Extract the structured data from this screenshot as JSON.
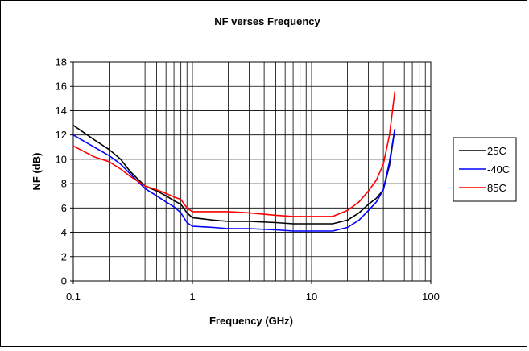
{
  "chart_data": {
    "type": "line",
    "title": "NF verses Frequency",
    "xlabel": "Frequency (GHz)",
    "ylabel": "NF (dB)",
    "xscale": "log",
    "xlim": [
      0.1,
      100
    ],
    "ylim": [
      0,
      18
    ],
    "xticks": [
      "0.1",
      "1",
      "10",
      "100"
    ],
    "yticks": [
      "0",
      "2",
      "4",
      "6",
      "8",
      "10",
      "12",
      "14",
      "16",
      "18"
    ],
    "grid": true,
    "legend_position": "right",
    "series": [
      {
        "name": "25C",
        "color": "#000000",
        "x": [
          0.1,
          0.15,
          0.2,
          0.25,
          0.3,
          0.4,
          0.5,
          0.6,
          0.7,
          0.8,
          0.9,
          1,
          1.5,
          2,
          3,
          5,
          7,
          10,
          15,
          20,
          25,
          30,
          35,
          40,
          45,
          50
        ],
        "y": [
          12.8,
          11.6,
          10.8,
          10.0,
          9.0,
          7.8,
          7.4,
          7.0,
          6.6,
          6.3,
          5.6,
          5.2,
          5.0,
          4.9,
          4.9,
          4.8,
          4.7,
          4.7,
          4.7,
          5.0,
          5.6,
          6.3,
          6.8,
          7.5,
          9.5,
          12.5
        ]
      },
      {
        "name": "-40C",
        "color": "#0000ff",
        "x": [
          0.1,
          0.15,
          0.2,
          0.25,
          0.3,
          0.4,
          0.5,
          0.6,
          0.7,
          0.8,
          0.9,
          1,
          1.5,
          2,
          3,
          5,
          7,
          10,
          15,
          20,
          25,
          30,
          35,
          40,
          45,
          50
        ],
        "y": [
          12.0,
          11.0,
          10.3,
          9.6,
          8.8,
          7.6,
          7.0,
          6.5,
          6.1,
          5.6,
          4.8,
          4.5,
          4.4,
          4.3,
          4.3,
          4.2,
          4.1,
          4.1,
          4.1,
          4.4,
          5.0,
          5.8,
          6.5,
          7.5,
          9.8,
          12.5
        ]
      },
      {
        "name": "85C",
        "color": "#ff0000",
        "x": [
          0.1,
          0.15,
          0.2,
          0.25,
          0.3,
          0.4,
          0.5,
          0.6,
          0.7,
          0.8,
          0.9,
          1,
          1.5,
          2,
          3,
          5,
          7,
          10,
          15,
          20,
          25,
          30,
          35,
          40,
          45,
          50
        ],
        "y": [
          11.1,
          10.2,
          9.8,
          9.2,
          8.6,
          7.8,
          7.5,
          7.2,
          6.9,
          6.7,
          6.0,
          5.7,
          5.7,
          5.7,
          5.6,
          5.4,
          5.3,
          5.3,
          5.3,
          5.8,
          6.5,
          7.4,
          8.3,
          9.6,
          12.0,
          15.6
        ]
      }
    ]
  }
}
